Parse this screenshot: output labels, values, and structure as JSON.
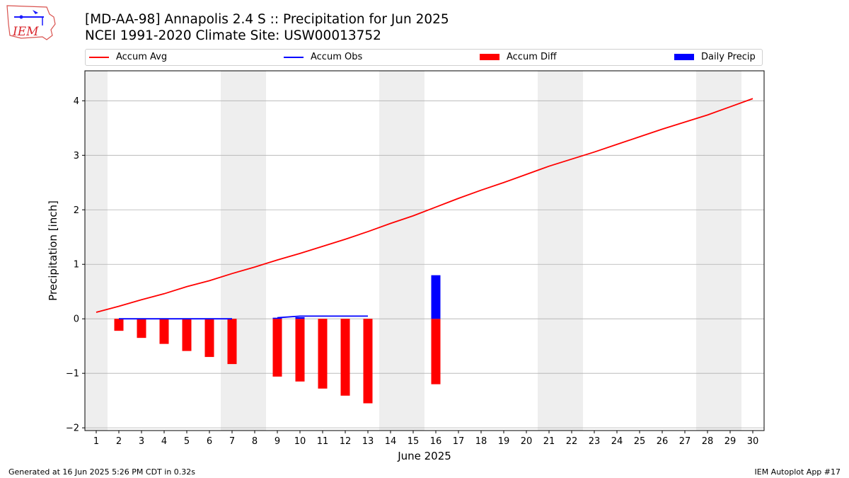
{
  "header": {
    "title_line1": "[MD-AA-98] Annapolis 2.4 S :: Precipitation for Jun 2025",
    "title_line2": "NCEI 1991-2020 Climate Site: USW00013752"
  },
  "logo": {
    "text": "IEM"
  },
  "footer": {
    "left": "Generated at 16 Jun 2025 5:26 PM CDT in 0.32s",
    "right": "IEM Autoplot App #17"
  },
  "colors": {
    "avg": "#ff0000",
    "obs": "#0000ff",
    "diff": "#ff0000",
    "daily": "#0000ff",
    "weekend": "#eeeeee"
  },
  "chart_data": {
    "type": "bar",
    "xlabel": "June 2025",
    "ylabel": "Precipitation [inch]",
    "xlim": [
      0.5,
      30.5
    ],
    "ylim": [
      -2.05,
      4.55
    ],
    "yticks": [
      -2,
      -1,
      0,
      1,
      2,
      3,
      4
    ],
    "ytick_labels": [
      "−2",
      "−1",
      "0",
      "1",
      "2",
      "3",
      "4"
    ],
    "x": [
      1,
      2,
      3,
      4,
      5,
      6,
      7,
      8,
      9,
      10,
      11,
      12,
      13,
      14,
      15,
      16,
      17,
      18,
      19,
      20,
      21,
      22,
      23,
      24,
      25,
      26,
      27,
      28,
      29,
      30
    ],
    "grid": "horizontal",
    "weekend_bands": [
      [
        0.5,
        1.5
      ],
      [
        6.5,
        8.5
      ],
      [
        13.5,
        15.5
      ],
      [
        20.5,
        22.5
      ],
      [
        27.5,
        29.5
      ]
    ],
    "legend": [
      {
        "key": "avg",
        "label": "Accum Avg",
        "kind": "line"
      },
      {
        "key": "obs",
        "label": "Accum Obs",
        "kind": "line"
      },
      {
        "key": "diff",
        "label": "Accum Diff",
        "kind": "box"
      },
      {
        "key": "daily",
        "label": "Daily Precip",
        "kind": "box"
      }
    ],
    "series": [
      {
        "key": "avg",
        "name": "Accum Avg",
        "type": "line",
        "x": [
          1,
          2,
          3,
          4,
          5,
          6,
          7,
          8,
          9,
          10,
          11,
          12,
          13,
          14,
          15,
          16,
          17,
          18,
          19,
          20,
          21,
          22,
          23,
          24,
          25,
          26,
          27,
          28,
          29,
          30
        ],
        "values": [
          0.12,
          0.23,
          0.35,
          0.46,
          0.59,
          0.7,
          0.83,
          0.95,
          1.08,
          1.2,
          1.33,
          1.46,
          1.6,
          1.75,
          1.89,
          2.05,
          2.21,
          2.36,
          2.5,
          2.65,
          2.8,
          2.93,
          3.06,
          3.2,
          3.34,
          3.48,
          3.61,
          3.74,
          3.89,
          4.04
        ]
      },
      {
        "key": "obs",
        "name": "Accum Obs",
        "type": "line",
        "segments": [
          {
            "x": [
              2,
              3,
              4,
              5,
              6,
              7
            ],
            "values": [
              0.0,
              0.0,
              0.0,
              0.0,
              0.0,
              0.0
            ]
          },
          {
            "x": [
              9,
              10,
              11,
              12,
              13
            ],
            "values": [
              0.02,
              0.05,
              0.05,
              0.05,
              0.05
            ]
          }
        ]
      },
      {
        "key": "diff",
        "name": "Accum Diff",
        "type": "bar",
        "x": [
          2,
          3,
          4,
          5,
          6,
          7,
          9,
          10,
          11,
          12,
          13,
          16
        ],
        "values": [
          -0.22,
          -0.35,
          -0.46,
          -0.59,
          -0.7,
          -0.83,
          -1.06,
          -1.15,
          -1.28,
          -1.41,
          -1.55,
          -1.2
        ]
      },
      {
        "key": "daily",
        "name": "Daily Precip",
        "type": "bar",
        "x": [
          9,
          10,
          16
        ],
        "values": [
          0.02,
          0.03,
          0.8
        ]
      }
    ]
  }
}
